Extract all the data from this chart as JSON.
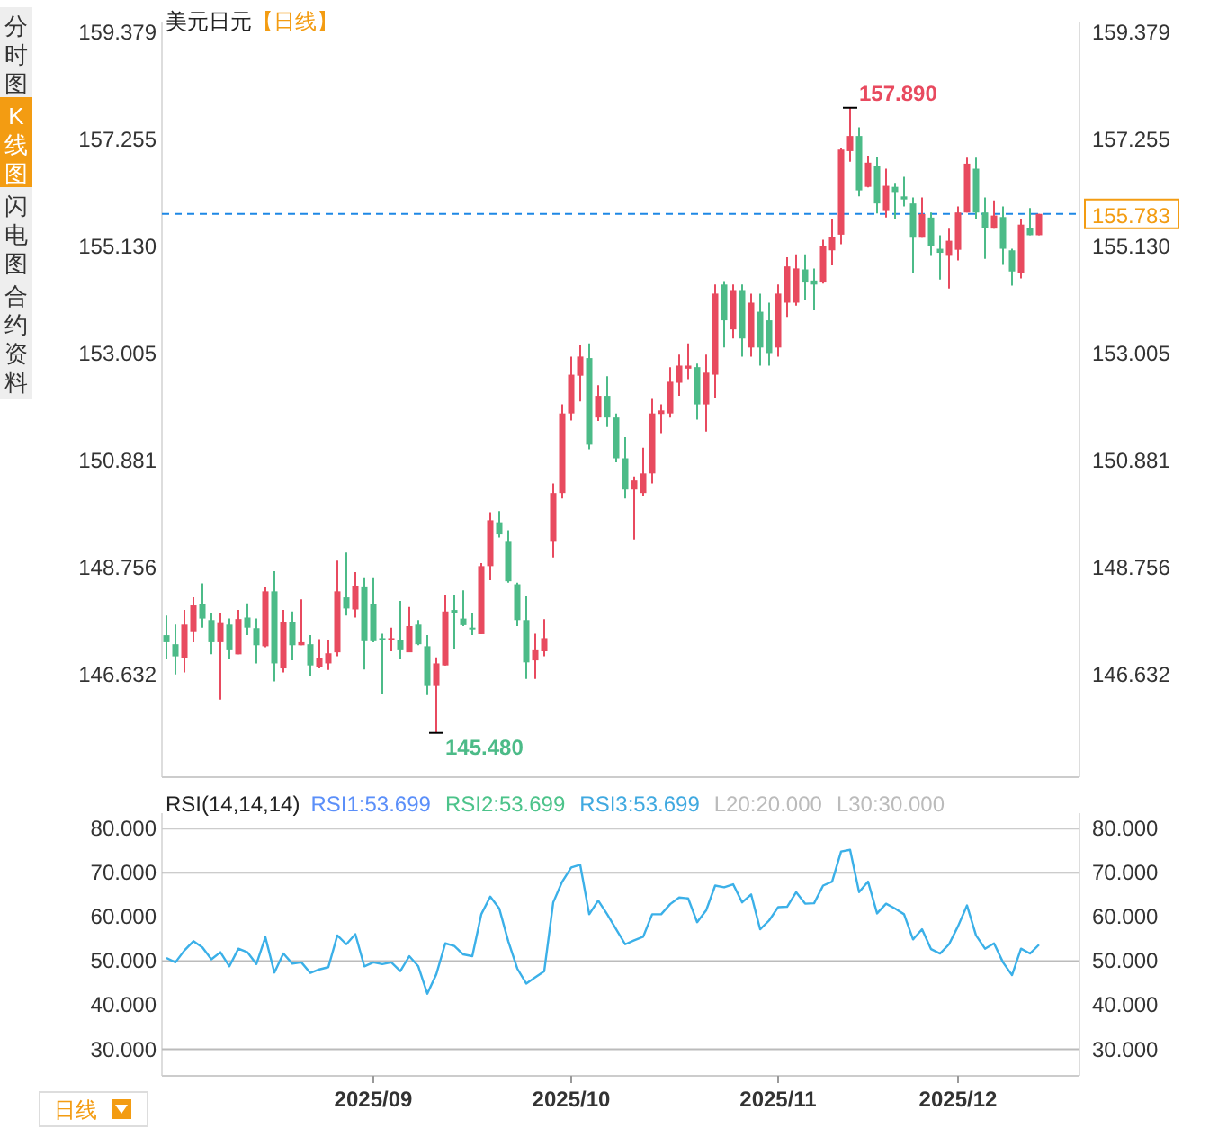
{
  "chart_data": [
    {
      "type": "candlestick",
      "title": "美元日元",
      "subtitle": "【日线】",
      "tick_labels": "y",
      "grid": false,
      "categories": [
        null,
        null,
        null,
        null,
        null,
        null,
        null,
        null,
        null,
        null,
        null,
        null,
        null,
        null,
        null,
        null,
        null,
        null,
        null,
        null,
        null,
        null,
        null,
        null,
        null,
        null,
        null,
        null,
        null,
        null,
        null,
        null,
        null,
        null,
        null,
        null,
        null,
        null,
        null,
        null,
        null,
        null,
        null,
        null,
        null,
        null,
        null,
        null,
        null,
        null,
        null,
        null,
        null,
        null,
        null,
        null,
        null,
        null,
        null,
        null,
        null,
        null,
        null,
        null,
        null,
        null,
        null,
        null,
        null,
        null,
        null,
        null,
        null,
        null,
        null,
        null,
        null,
        null,
        null,
        null,
        null,
        null,
        null,
        null,
        null,
        null,
        null,
        null,
        null,
        null,
        null,
        null,
        null,
        null,
        null,
        null,
        null,
        null
      ],
      "ohlc": [
        [
          147.42,
          147.81,
          146.94,
          147.28
        ],
        [
          147.24,
          147.63,
          146.64,
          147.0
        ],
        [
          146.97,
          147.92,
          146.68,
          147.63
        ],
        [
          147.48,
          148.17,
          147.28,
          148.01
        ],
        [
          148.04,
          148.45,
          147.57,
          147.75
        ],
        [
          147.72,
          147.87,
          147.04,
          147.28
        ],
        [
          147.28,
          147.87,
          146.14,
          147.66
        ],
        [
          147.63,
          147.75,
          146.94,
          147.12
        ],
        [
          147.04,
          147.92,
          147.04,
          147.74
        ],
        [
          147.77,
          148.05,
          147.42,
          147.57
        ],
        [
          147.56,
          147.75,
          146.86,
          147.22
        ],
        [
          147.2,
          148.37,
          147.18,
          148.29
        ],
        [
          148.29,
          148.69,
          146.5,
          146.86
        ],
        [
          146.76,
          147.92,
          146.68,
          147.68
        ],
        [
          147.68,
          147.89,
          146.92,
          147.22
        ],
        [
          147.22,
          148.13,
          147.22,
          147.28
        ],
        [
          147.24,
          147.42,
          146.62,
          146.82
        ],
        [
          146.79,
          147.34,
          146.76,
          146.97
        ],
        [
          146.86,
          147.32,
          146.73,
          147.06
        ],
        [
          147.08,
          148.9,
          147.0,
          148.29
        ],
        [
          148.17,
          149.06,
          147.81,
          147.95
        ],
        [
          147.93,
          148.67,
          147.77,
          148.39
        ],
        [
          148.37,
          148.55,
          146.74,
          147.3
        ],
        [
          148.04,
          148.55,
          147.28,
          147.3
        ],
        [
          147.36,
          147.45,
          146.26,
          147.34
        ],
        [
          147.34,
          147.57,
          147.1,
          147.36
        ],
        [
          147.32,
          148.1,
          146.94,
          147.12
        ],
        [
          147.08,
          147.98,
          147.08,
          147.6
        ],
        [
          147.63,
          147.72,
          147.22,
          147.24
        ],
        [
          147.2,
          147.42,
          146.23,
          146.41
        ],
        [
          146.41,
          146.98,
          145.48,
          146.86
        ],
        [
          146.82,
          148.22,
          146.82,
          147.89
        ],
        [
          147.92,
          148.22,
          147.14,
          147.86
        ],
        [
          147.75,
          148.31,
          147.6,
          147.62
        ],
        [
          147.57,
          147.87,
          147.42,
          147.55
        ],
        [
          147.44,
          148.85,
          147.44,
          148.79
        ],
        [
          148.79,
          149.86,
          148.51,
          149.7
        ],
        [
          149.66,
          149.88,
          149.36,
          149.42
        ],
        [
          149.29,
          149.5,
          148.46,
          148.49
        ],
        [
          148.43,
          148.46,
          147.6,
          147.72
        ],
        [
          147.72,
          148.19,
          146.55,
          146.88
        ],
        [
          146.92,
          147.45,
          146.55,
          147.12
        ],
        [
          147.1,
          147.74,
          147.0,
          147.36
        ],
        [
          149.29,
          150.43,
          148.96,
          150.24
        ],
        [
          150.24,
          152.0,
          150.13,
          151.82
        ],
        [
          151.82,
          152.95,
          151.68,
          152.59
        ],
        [
          152.57,
          153.17,
          152.06,
          152.95
        ],
        [
          152.92,
          153.21,
          151.11,
          151.2
        ],
        [
          151.74,
          152.38,
          151.67,
          152.17
        ],
        [
          152.17,
          152.56,
          151.55,
          151.74
        ],
        [
          151.74,
          151.82,
          150.85,
          150.93
        ],
        [
          150.93,
          151.35,
          150.13,
          150.31
        ],
        [
          150.31,
          150.57,
          149.32,
          150.49
        ],
        [
          150.24,
          151.14,
          150.19,
          150.63
        ],
        [
          150.63,
          152.11,
          150.43,
          151.82
        ],
        [
          151.81,
          152.0,
          151.43,
          151.88
        ],
        [
          151.82,
          152.74,
          151.74,
          152.45
        ],
        [
          152.43,
          152.99,
          152.17,
          152.77
        ],
        [
          152.71,
          153.21,
          152.5,
          152.77
        ],
        [
          152.74,
          152.81,
          151.7,
          152.0
        ],
        [
          152.0,
          152.99,
          151.46,
          152.63
        ],
        [
          152.59,
          154.38,
          152.12,
          154.2
        ],
        [
          154.38,
          154.45,
          153.13,
          153.67
        ],
        [
          153.49,
          154.38,
          153.31,
          154.27
        ],
        [
          154.27,
          154.38,
          152.95,
          153.31
        ],
        [
          153.13,
          154.2,
          152.95,
          154.02
        ],
        [
          153.84,
          154.2,
          152.77,
          153.13
        ],
        [
          153.67,
          154.02,
          152.77,
          153.02
        ],
        [
          153.13,
          154.38,
          152.95,
          154.2
        ],
        [
          154.02,
          154.92,
          153.74,
          154.74
        ],
        [
          154.02,
          154.98,
          153.96,
          154.7
        ],
        [
          154.68,
          154.98,
          154.08,
          154.42
        ],
        [
          154.46,
          154.7,
          153.87,
          154.38
        ],
        [
          154.42,
          155.27,
          154.4,
          155.15
        ],
        [
          155.06,
          155.69,
          154.76,
          155.33
        ],
        [
          155.37,
          157.08,
          155.18,
          157.06
        ],
        [
          157.03,
          157.89,
          156.82,
          157.33
        ],
        [
          157.33,
          157.5,
          156.13,
          156.25
        ],
        [
          156.32,
          156.94,
          156.31,
          156.8
        ],
        [
          156.73,
          156.92,
          155.79,
          155.99
        ],
        [
          155.84,
          156.68,
          155.71,
          156.34
        ],
        [
          156.32,
          156.4,
          155.69,
          156.2
        ],
        [
          156.13,
          156.52,
          155.93,
          156.07
        ],
        [
          155.99,
          156.11,
          154.6,
          155.31
        ],
        [
          155.31,
          156.11,
          155.31,
          155.78
        ],
        [
          155.71,
          155.81,
          154.95,
          155.15
        ],
        [
          155.09,
          155.36,
          154.48,
          155.01
        ],
        [
          154.95,
          155.49,
          154.3,
          155.25
        ],
        [
          155.07,
          155.93,
          154.86,
          155.81
        ],
        [
          155.81,
          156.9,
          155.81,
          156.78
        ],
        [
          156.68,
          156.9,
          155.69,
          155.81
        ],
        [
          155.81,
          156.11,
          154.89,
          155.51
        ],
        [
          155.49,
          156.05,
          155.49,
          155.75
        ],
        [
          155.72,
          155.93,
          154.77,
          155.09
        ],
        [
          155.06,
          155.09,
          154.36,
          154.64
        ],
        [
          154.6,
          155.69,
          154.5,
          155.57
        ],
        [
          155.51,
          155.9,
          155.36,
          155.36
        ],
        [
          155.36,
          155.783,
          155.36,
          155.783
        ]
      ],
      "ylim": [
        144.6,
        159.6
      ],
      "yticks": [
        {
          "value": 146.632,
          "label": "146.632"
        },
        {
          "value": 148.756,
          "label": "148.756"
        },
        {
          "value": 150.881,
          "label": "150.881"
        },
        {
          "value": 153.005,
          "label": "153.005"
        },
        {
          "value": 155.13,
          "label": "155.130"
        },
        {
          "value": 157.255,
          "label": "157.255"
        },
        {
          "value": 159.379,
          "label": "159.379"
        }
      ],
      "y2lim": [
        144.6,
        159.6
      ],
      "y2ticks": [
        {
          "value": 146.632,
          "label": "146.632"
        },
        {
          "value": 148.756,
          "label": "148.756"
        },
        {
          "value": 150.881,
          "label": "150.881"
        },
        {
          "value": 153.005,
          "label": "153.005"
        },
        {
          "value": 155.13,
          "label": "155.130"
        },
        {
          "value": 157.255,
          "label": "157.255"
        },
        {
          "value": 159.379,
          "label": "159.379"
        }
      ],
      "ref_lines": [
        {
          "axis": "y",
          "value": 155.783,
          "label": "155.783",
          "color": "#1e88e5",
          "line_style": "dashed"
        }
      ],
      "annotations": [
        "157.890",
        "145.480",
        "分时图",
        "K线图",
        "闪电图",
        "合约资料",
        "日线"
      ]
    },
    {
      "type": "line",
      "title": "RSI(14,14,14)",
      "grid": false,
      "categories": [
        null,
        null,
        null,
        null,
        null,
        null,
        null,
        null,
        null,
        null,
        null,
        null,
        null,
        null,
        null,
        null,
        null,
        null,
        null,
        null,
        null,
        null,
        null,
        "2025/09",
        null,
        null,
        null,
        null,
        null,
        null,
        null,
        null,
        null,
        null,
        null,
        null,
        null,
        null,
        null,
        null,
        null,
        null,
        null,
        null,
        null,
        "2025/10",
        null,
        null,
        null,
        null,
        null,
        null,
        null,
        null,
        null,
        null,
        null,
        null,
        null,
        null,
        null,
        null,
        null,
        null,
        null,
        null,
        null,
        null,
        "2025/11",
        null,
        null,
        null,
        null,
        null,
        null,
        null,
        null,
        null,
        null,
        null,
        null,
        null,
        null,
        null,
        null,
        null,
        null,
        null,
        "2025/12",
        null,
        null,
        null,
        null,
        null,
        null,
        null,
        null,
        null
      ],
      "series": [
        {
          "color": "#3bb0e8",
          "values": [
            50.7,
            49.7,
            52.4,
            54.5,
            53.1,
            50.4,
            52.0,
            48.8,
            52.8,
            52.0,
            49.3,
            55.4,
            47.4,
            51.7,
            49.4,
            49.7,
            47.3,
            48.1,
            48.6,
            55.8,
            53.8,
            56.1,
            48.8,
            49.7,
            49.3,
            49.7,
            47.7,
            51.1,
            48.8,
            42.6,
            47.0,
            54.0,
            53.4,
            51.5,
            51.1,
            60.6,
            64.6,
            61.9,
            54.5,
            48.3,
            44.9,
            46.3,
            47.7,
            63.3,
            68.0,
            71.2,
            71.8,
            60.6,
            63.7,
            60.6,
            57.2,
            53.8,
            54.7,
            55.5,
            60.6,
            60.6,
            62.9,
            64.4,
            64.2,
            58.8,
            61.5,
            67.1,
            66.7,
            67.4,
            63.3,
            65.1,
            57.2,
            59.2,
            62.2,
            62.3,
            65.6,
            63.0,
            63.1,
            67.1,
            68.0,
            74.8,
            75.2,
            65.6,
            68.0,
            60.8,
            63.0,
            61.9,
            60.6,
            54.9,
            57.2,
            52.7,
            51.7,
            53.8,
            57.9,
            62.6,
            55.8,
            52.8,
            54.0,
            49.7,
            46.8,
            52.8,
            51.7,
            53.7
          ]
        }
      ],
      "ylim": [
        24,
        83.5
      ],
      "yticks": [
        {
          "value": 30,
          "label": "30.000"
        },
        {
          "value": 40,
          "label": "40.000"
        },
        {
          "value": 50,
          "label": "50.000"
        },
        {
          "value": 60,
          "label": "60.000"
        },
        {
          "value": 70,
          "label": "70.000"
        },
        {
          "value": 80,
          "label": "80.000"
        }
      ],
      "y2lim": [
        24,
        83.5
      ],
      "y2ticks": [
        {
          "value": 30,
          "label": "30.000"
        },
        {
          "value": 40,
          "label": "40.000"
        },
        {
          "value": 50,
          "label": "50.000"
        },
        {
          "value": 60,
          "label": "60.000"
        },
        {
          "value": 70,
          "label": "70.000"
        },
        {
          "value": 80,
          "label": "80.000"
        }
      ],
      "ref_lines": [
        {
          "axis": "y",
          "value": 80,
          "color": "#cccccc"
        },
        {
          "axis": "y",
          "value": 70,
          "color": "#bbbbbb"
        },
        {
          "axis": "y",
          "value": 50,
          "color": "#bbbbbb"
        },
        {
          "axis": "y",
          "value": 30,
          "color": "#bbbbbb"
        }
      ],
      "annotations": [
        "RSI1:53.699",
        "RSI2:53.699",
        "RSI3:53.699",
        "L20:20.000",
        "L30:30.000"
      ]
    }
  ]
}
